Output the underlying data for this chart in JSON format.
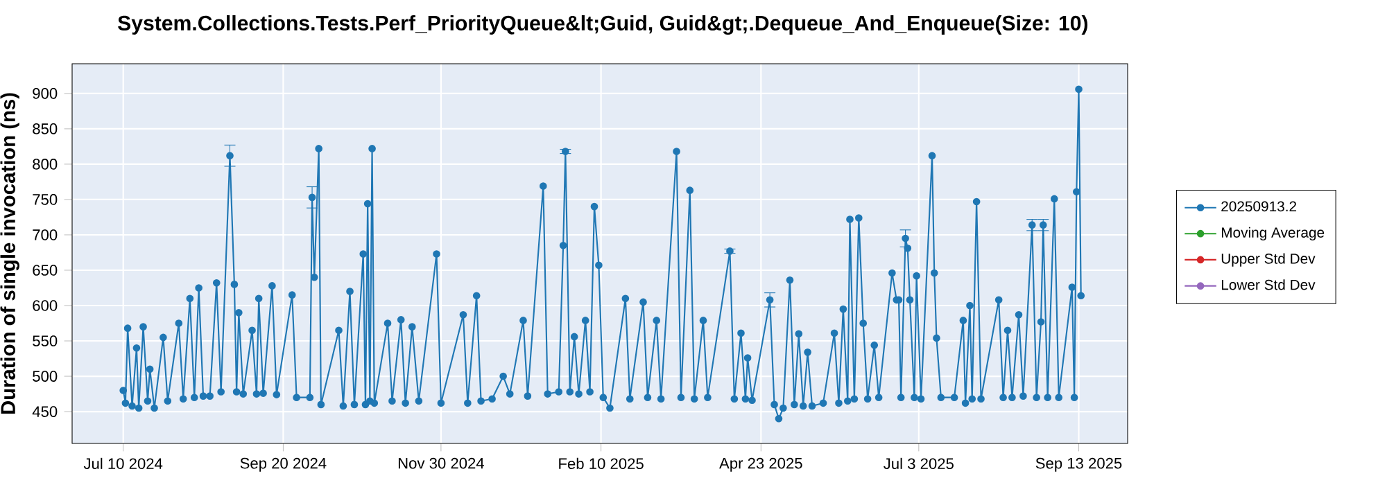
{
  "chart_data": {
    "type": "line",
    "title": "System.Collections.Tests.Perf_PriorityQueue&lt;Guid, Guid&gt;.Dequeue_And_Enqueue(Size: 10)",
    "ylabel": "Duration of single invocation (ns)",
    "x": [
      "2024-07-10",
      "2024-07-11",
      "2024-07-12",
      "2024-07-14",
      "2024-07-16",
      "2024-07-17",
      "2024-07-19",
      "2024-07-21",
      "2024-07-22",
      "2024-07-24",
      "2024-07-28",
      "2024-07-30",
      "2024-08-04",
      "2024-08-06",
      "2024-08-09",
      "2024-08-11",
      "2024-08-13",
      "2024-08-15",
      "2024-08-18",
      "2024-08-21",
      "2024-08-23",
      "2024-08-27",
      "2024-08-29",
      "2024-08-30",
      "2024-08-31",
      "2024-09-02",
      "2024-09-06",
      "2024-09-08",
      "2024-09-09",
      "2024-09-11",
      "2024-09-15",
      "2024-09-17",
      "2024-09-24",
      "2024-09-26",
      "2024-10-02",
      "2024-10-03",
      "2024-10-04",
      "2024-10-06",
      "2024-10-07",
      "2024-10-15",
      "2024-10-17",
      "2024-10-20",
      "2024-10-22",
      "2024-10-26",
      "2024-10-27",
      "2024-10-28",
      "2024-10-29",
      "2024-10-30",
      "2024-10-31",
      "2024-11-06",
      "2024-11-08",
      "2024-11-12",
      "2024-11-14",
      "2024-11-17",
      "2024-11-20",
      "2024-11-28",
      "2024-11-30",
      "2024-12-10",
      "2024-12-12",
      "2024-12-16",
      "2024-12-18",
      "2024-12-23",
      "2024-12-28",
      "2024-12-31",
      "2025-01-06",
      "2025-01-08",
      "2025-01-15",
      "2025-01-17",
      "2025-01-22",
      "2025-01-24",
      "2025-01-25",
      "2025-01-27",
      "2025-01-29",
      "2025-01-31",
      "2025-02-03",
      "2025-02-05",
      "2025-02-07",
      "2025-02-09",
      "2025-02-11",
      "2025-02-14",
      "2025-02-21",
      "2025-02-23",
      "2025-03-01",
      "2025-03-03",
      "2025-03-07",
      "2025-03-09",
      "2025-03-16",
      "2025-03-18",
      "2025-03-22",
      "2025-03-24",
      "2025-03-28",
      "2025-03-30",
      "2025-04-09",
      "2025-04-11",
      "2025-04-14",
      "2025-04-16",
      "2025-04-17",
      "2025-04-19",
      "2025-04-27",
      "2025-04-29",
      "2025-05-01",
      "2025-05-03",
      "2025-05-06",
      "2025-05-08",
      "2025-05-10",
      "2025-05-12",
      "2025-05-14",
      "2025-05-16",
      "2025-05-21",
      "2025-05-26",
      "2025-05-28",
      "2025-05-30",
      "2025-06-01",
      "2025-06-02",
      "2025-06-04",
      "2025-06-06",
      "2025-06-08",
      "2025-06-10",
      "2025-06-13",
      "2025-06-15",
      "2025-06-21",
      "2025-06-23",
      "2025-06-24",
      "2025-06-25",
      "2025-06-27",
      "2025-06-28",
      "2025-06-29",
      "2025-07-01",
      "2025-07-02",
      "2025-07-04",
      "2025-07-09",
      "2025-07-10",
      "2025-07-11",
      "2025-07-13",
      "2025-07-19",
      "2025-07-23",
      "2025-07-24",
      "2025-07-26",
      "2025-07-27",
      "2025-07-29",
      "2025-07-31",
      "2025-08-08",
      "2025-08-10",
      "2025-08-12",
      "2025-08-14",
      "2025-08-17",
      "2025-08-19",
      "2025-08-23",
      "2025-08-25",
      "2025-08-27",
      "2025-08-28",
      "2025-08-30",
      "2025-09-02",
      "2025-09-04",
      "2025-09-10",
      "2025-09-11",
      "2025-09-12",
      "2025-09-13",
      "2025-09-14"
    ],
    "series": [
      {
        "name": "20250913.2",
        "color": "#1f77b4",
        "values": [
          480,
          462,
          568,
          458,
          540,
          455,
          570,
          465,
          510,
          455,
          555,
          465,
          575,
          468,
          610,
          470,
          625,
          472,
          472,
          632,
          478,
          812,
          630,
          478,
          590,
          475,
          565,
          475,
          610,
          476,
          628,
          474,
          615,
          470,
          470,
          753,
          640,
          822,
          460,
          565,
          458,
          620,
          460,
          673,
          460,
          744,
          465,
          822,
          462,
          575,
          465,
          580,
          462,
          570,
          465,
          673,
          462,
          587,
          462,
          614,
          465,
          468,
          500,
          475,
          579,
          472,
          769,
          475,
          478,
          685,
          818,
          478,
          556,
          475,
          579,
          478,
          740,
          657,
          470,
          455,
          610,
          468,
          605,
          470,
          579,
          468,
          818,
          470,
          763,
          468,
          579,
          470,
          677,
          468,
          561,
          468,
          526,
          466,
          608,
          460,
          440,
          455,
          636,
          460,
          560,
          458,
          534,
          458,
          462,
          561,
          462,
          595,
          465,
          722,
          468,
          724,
          575,
          468,
          544,
          470,
          646,
          608,
          608,
          470,
          695,
          681,
          608,
          470,
          642,
          468,
          812,
          646,
          554,
          470,
          470,
          579,
          462,
          600,
          468,
          747,
          468,
          608,
          470,
          565,
          470,
          587,
          472,
          714,
          470,
          577,
          714,
          470,
          751,
          470,
          626,
          470,
          761,
          906,
          614
        ],
        "errors": [
          null,
          null,
          null,
          null,
          null,
          null,
          null,
          null,
          null,
          null,
          null,
          null,
          null,
          null,
          null,
          null,
          null,
          null,
          null,
          null,
          null,
          15,
          null,
          null,
          null,
          null,
          null,
          null,
          null,
          null,
          null,
          null,
          null,
          null,
          null,
          15,
          null,
          null,
          null,
          null,
          null,
          null,
          null,
          null,
          null,
          null,
          null,
          null,
          null,
          null,
          null,
          null,
          null,
          null,
          null,
          null,
          null,
          null,
          null,
          null,
          null,
          null,
          null,
          null,
          null,
          null,
          null,
          null,
          null,
          null,
          3,
          null,
          null,
          null,
          null,
          null,
          null,
          null,
          null,
          null,
          null,
          null,
          null,
          null,
          null,
          null,
          null,
          null,
          null,
          null,
          null,
          null,
          3,
          null,
          null,
          null,
          null,
          null,
          10,
          null,
          null,
          null,
          null,
          null,
          null,
          null,
          null,
          null,
          null,
          null,
          null,
          null,
          null,
          null,
          null,
          null,
          null,
          null,
          null,
          null,
          null,
          null,
          null,
          null,
          12,
          null,
          null,
          null,
          null,
          null,
          null,
          null,
          null,
          null,
          null,
          null,
          null,
          null,
          null,
          null,
          null,
          null,
          null,
          null,
          null,
          null,
          null,
          8,
          null,
          null,
          8,
          null,
          null,
          null,
          null,
          null,
          null,
          null,
          null
        ]
      },
      {
        "name": "Moving Average",
        "color": "#2ca02c",
        "values": [
          null,
          null,
          null,
          null,
          null,
          null,
          null,
          null,
          null,
          null,
          null,
          null,
          null,
          null,
          null,
          null,
          null,
          null,
          null,
          null,
          null,
          null,
          null,
          null,
          null,
          null,
          null,
          null,
          null,
          null,
          null,
          null,
          null,
          null,
          null,
          null,
          null,
          null,
          null,
          null,
          null,
          null,
          null,
          null,
          null,
          null,
          null,
          null,
          null,
          null,
          null,
          null,
          null,
          null,
          null,
          null,
          null,
          null,
          null,
          null,
          null,
          null,
          null,
          null,
          null,
          null,
          null,
          null,
          null,
          null,
          null,
          null,
          null,
          null,
          null,
          null,
          null,
          null,
          null,
          null,
          null,
          null,
          null,
          null,
          null,
          null,
          null,
          null,
          null,
          null,
          null,
          null,
          null,
          null,
          null,
          null,
          null,
          null,
          null,
          null,
          null,
          null,
          null,
          null,
          null,
          null,
          null,
          null,
          null,
          null,
          null,
          null,
          null,
          null,
          null,
          null,
          null,
          null,
          null,
          null,
          null,
          null,
          null,
          null,
          null,
          null,
          null,
          null,
          null,
          null,
          null,
          null,
          null,
          null,
          null,
          null,
          null,
          null,
          null,
          null,
          null,
          null,
          null,
          null,
          null,
          null,
          null,
          null,
          null,
          null,
          null,
          null,
          null,
          null,
          null,
          null,
          null,
          null,
          null
        ]
      },
      {
        "name": "Upper Std Dev",
        "color": "#d62728",
        "values": [
          null,
          null,
          null,
          null,
          null,
          null,
          null,
          null,
          null,
          null,
          null,
          null,
          null,
          null,
          null,
          null,
          null,
          null,
          null,
          null,
          null,
          null,
          null,
          null,
          null,
          null,
          null,
          null,
          null,
          null,
          null,
          null,
          null,
          null,
          null,
          null,
          null,
          null,
          null,
          null,
          null,
          null,
          null,
          null,
          null,
          null,
          null,
          null,
          null,
          null,
          null,
          null,
          null,
          null,
          null,
          null,
          null,
          null,
          null,
          null,
          null,
          null,
          null,
          null,
          null,
          null,
          null,
          null,
          null,
          null,
          null,
          null,
          null,
          null,
          null,
          null,
          null,
          null,
          null,
          null,
          null,
          null,
          null,
          null,
          null,
          null,
          null,
          null,
          null,
          null,
          null,
          null,
          null,
          null,
          null,
          null,
          null,
          null,
          null,
          null,
          null,
          null,
          null,
          null,
          null,
          null,
          null,
          null,
          null,
          null,
          null,
          null,
          null,
          null,
          null,
          null,
          null,
          null,
          null,
          null,
          null,
          null,
          null,
          null,
          null,
          null,
          null,
          null,
          null,
          null,
          null,
          null,
          null,
          null,
          null,
          null,
          null,
          null,
          null,
          null,
          null,
          null,
          null,
          null,
          null,
          null,
          null,
          null,
          null,
          null,
          null,
          null,
          null,
          null,
          null,
          null,
          null,
          null,
          null
        ]
      },
      {
        "name": "Lower Std Dev",
        "color": "#9467bd",
        "values": [
          null,
          null,
          null,
          null,
          null,
          null,
          null,
          null,
          null,
          null,
          null,
          null,
          null,
          null,
          null,
          null,
          null,
          null,
          null,
          null,
          null,
          null,
          null,
          null,
          null,
          null,
          null,
          null,
          null,
          null,
          null,
          null,
          null,
          null,
          null,
          null,
          null,
          null,
          null,
          null,
          null,
          null,
          null,
          null,
          null,
          null,
          null,
          null,
          null,
          null,
          null,
          null,
          null,
          null,
          null,
          null,
          null,
          null,
          null,
          null,
          null,
          null,
          null,
          null,
          null,
          null,
          null,
          null,
          null,
          null,
          null,
          null,
          null,
          null,
          null,
          null,
          null,
          null,
          null,
          null,
          null,
          null,
          null,
          null,
          null,
          null,
          null,
          null,
          null,
          null,
          null,
          null,
          null,
          null,
          null,
          null,
          null,
          null,
          null,
          null,
          null,
          null,
          null,
          null,
          null,
          null,
          null,
          null,
          null,
          null,
          null,
          null,
          null,
          null,
          null,
          null,
          null,
          null,
          null,
          null,
          null,
          null,
          null,
          null,
          null,
          null,
          null,
          null,
          null,
          null,
          null,
          null,
          null,
          null,
          null,
          null,
          null,
          null,
          null,
          null,
          null,
          null,
          null,
          null,
          null,
          null,
          null,
          null,
          null,
          null,
          null,
          null,
          null,
          null,
          null,
          null,
          null,
          null,
          null
        ]
      }
    ],
    "xlim": [
      "2024-06-17",
      "2025-10-05"
    ],
    "xticks": [
      {
        "value": "2024-07-10",
        "label": "Jul 10 2024"
      },
      {
        "value": "2024-09-20",
        "label": "Sep 20 2024"
      },
      {
        "value": "2024-11-30",
        "label": "Nov 30 2024"
      },
      {
        "value": "2025-02-10",
        "label": "Feb 10 2025"
      },
      {
        "value": "2025-04-23",
        "label": "Apr 23 2025"
      },
      {
        "value": "2025-07-03",
        "label": "Jul 3 2025"
      },
      {
        "value": "2025-09-13",
        "label": "Sep 13 2025"
      }
    ],
    "ylim": [
      405,
      942
    ],
    "yticks": [
      450,
      500,
      550,
      600,
      650,
      700,
      750,
      800,
      850,
      900
    ],
    "grid": true,
    "legend": "right",
    "marker": "circle",
    "line_style": "solid"
  }
}
